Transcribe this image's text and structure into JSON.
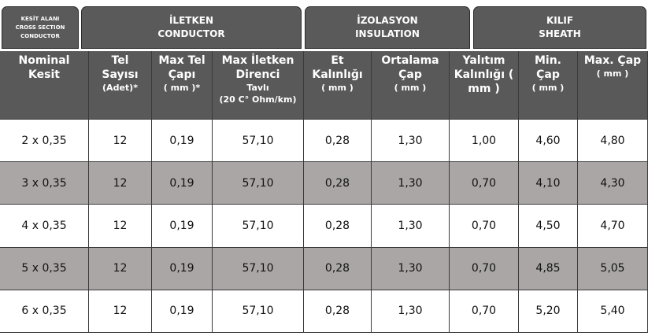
{
  "groups": [
    {
      "lines": [
        "KESİT ALANI",
        "CROSS SECTION",
        "CONDUCTOR"
      ]
    },
    {
      "lines": [
        "İLETKEN",
        "CONDUCTOR"
      ]
    },
    {
      "lines": [
        "İZOLASYON",
        "INSULATION"
      ]
    },
    {
      "lines": [
        "KILIF",
        "SHEATH"
      ]
    }
  ],
  "table": {
    "header": [
      {
        "main": [
          "Nominal",
          "Kesit"
        ],
        "sub": []
      },
      {
        "main": [
          "Tel",
          "Sayısı"
        ],
        "sub": [
          "(Adet)*"
        ]
      },
      {
        "main": [
          "Max Tel",
          "Çapı"
        ],
        "sub": [
          "( mm )*"
        ]
      },
      {
        "main": [
          "Max İletken",
          "Direnci"
        ],
        "sub": [
          "Tavlı",
          "(20 C°  Ohm/km)"
        ]
      },
      {
        "main": [
          "Et",
          "Kalınlığı"
        ],
        "sub": [
          "( mm )"
        ]
      },
      {
        "main": [
          "Ortalama",
          "Çap"
        ],
        "sub": [
          "( mm )"
        ]
      },
      {
        "main": [
          "Yalıtım",
          "Kalınlığı (",
          "mm )"
        ],
        "sub": []
      },
      {
        "main": [
          "Min.",
          "Çap"
        ],
        "sub": [
          "( mm )"
        ]
      },
      {
        "main": [
          "Max. Çap"
        ],
        "sub": [
          "( mm )"
        ]
      }
    ],
    "rows": [
      [
        "2 x 0,35",
        "12",
        "0,19",
        "57,10",
        "0,28",
        "1,30",
        "1,00",
        "4,60",
        "4,80"
      ],
      [
        "3 x 0,35",
        "12",
        "0,19",
        "57,10",
        "0,28",
        "1,30",
        "0,70",
        "4,10",
        "4,30"
      ],
      [
        "4 x 0,35",
        "12",
        "0,19",
        "57,10",
        "0,28",
        "1,30",
        "0,70",
        "4,50",
        "4,70"
      ],
      [
        "5 x 0,35",
        "12",
        "0,19",
        "57,10",
        "0,28",
        "1,30",
        "0,70",
        "4,85",
        "5,05"
      ],
      [
        "6 x 0,35",
        "12",
        "0,19",
        "57,10",
        "0,28",
        "1,30",
        "0,70",
        "5,20",
        "5,40"
      ]
    ]
  }
}
